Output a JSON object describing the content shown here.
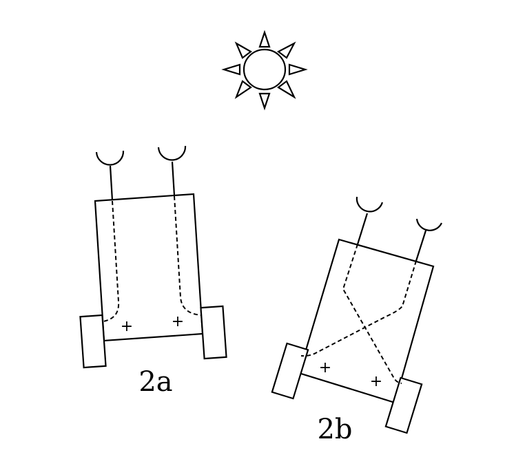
{
  "vehicles": [
    {
      "label": "2a",
      "left_polarity": "+",
      "right_polarity": "+",
      "wiring": "uncrossed"
    },
    {
      "label": "2b",
      "left_polarity": "+",
      "right_polarity": "+",
      "wiring": "crossed"
    }
  ],
  "colors": {
    "ink": "#000000",
    "background": "#ffffff"
  },
  "icons": [
    "sun-icon",
    "light-sensor-icon",
    "wheel-icon"
  ]
}
